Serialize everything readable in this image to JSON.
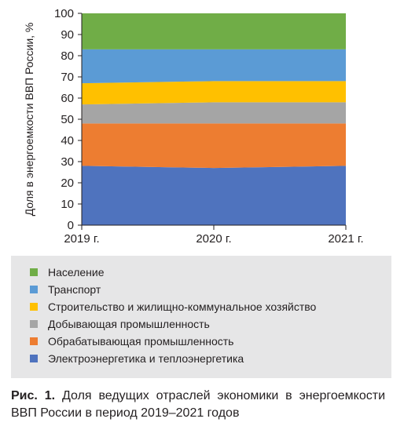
{
  "chart_data": {
    "type": "area",
    "stacked": true,
    "x": [
      "2019 г.",
      "2020 г.",
      "2021 г."
    ],
    "series": [
      {
        "name": "Электроэнергетика и теплоэнергетика",
        "values": [
          28,
          27,
          28
        ],
        "color": "#4f73be"
      },
      {
        "name": "Обрабатывающая промышленность",
        "values": [
          20,
          21,
          20
        ],
        "color": "#ed7d31"
      },
      {
        "name": "Добывающая промышленность",
        "values": [
          9,
          10,
          10
        ],
        "color": "#a5a5a5"
      },
      {
        "name": "Строительство и жилищно-коммунальное хозяйство",
        "values": [
          10,
          10,
          10
        ],
        "color": "#ffc000"
      },
      {
        "name": "Транспорт",
        "values": [
          16,
          15,
          15
        ],
        "color": "#5b9bd5"
      },
      {
        "name": "Население",
        "values": [
          17,
          17,
          17
        ],
        "color": "#70ad47"
      }
    ],
    "legend_order": [
      "Население",
      "Транспорт",
      "Строительство и жилищно-коммунальное хозяйство",
      "Добывающая промышленность",
      "Обрабатывающая промышленность",
      "Электроэнергетика и теплоэнергетика"
    ],
    "ylabel": "Доля в энергоемкости ВВП России, %",
    "xlabel": "",
    "ylim": [
      0,
      100
    ],
    "yticks": [
      0,
      10,
      20,
      30,
      40,
      50,
      60,
      70,
      80,
      90,
      100
    ],
    "grid": false,
    "legend_position": "bottom"
  },
  "caption": {
    "prefix": "Рис. 1.",
    "text": "Доля ведущих отраслей экономики в энергоемкости ВВП России в период 2019–2021 годов"
  }
}
